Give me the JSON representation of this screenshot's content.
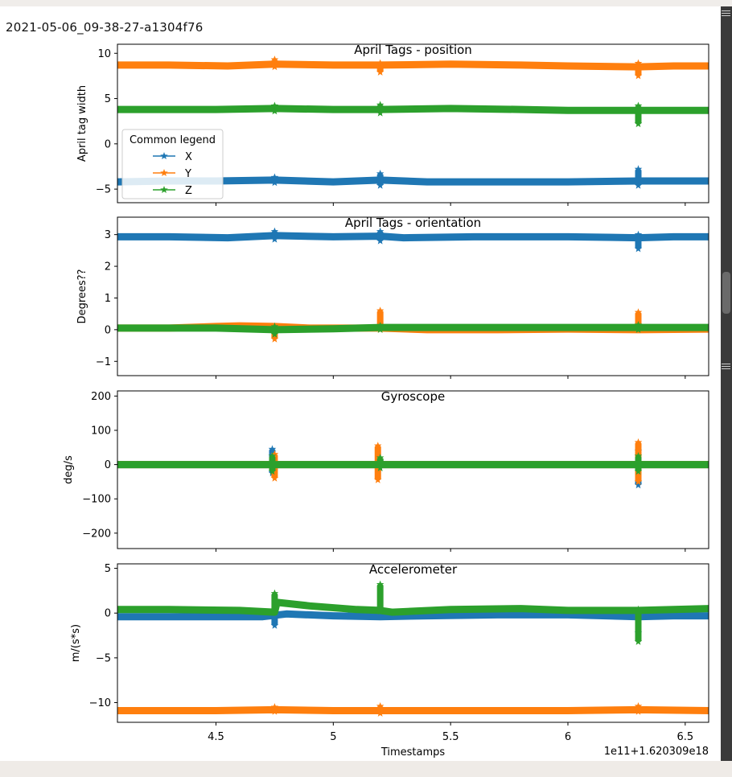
{
  "figure_title": "2021-05-06_09-38-27-a1304f76",
  "chart_data": [
    {
      "type": "scatter",
      "title": "April Tags - position",
      "ylabel": "April tag width",
      "xlabel": "",
      "xlim": [
        4.08,
        6.6
      ],
      "ylim": [
        -6.5,
        11.0
      ],
      "yticks": [
        -5,
        0,
        5,
        10
      ],
      "legend": {
        "title": "Common legend",
        "placement": "center-left",
        "entries": [
          "X",
          "Y",
          "Z"
        ]
      },
      "marker": "star",
      "series": [
        {
          "name": "X",
          "color": "#1f77b4",
          "x": [
            4.08,
            4.3,
            4.5,
            4.75,
            5.0,
            5.2,
            5.4,
            5.7,
            6.0,
            6.3,
            6.45,
            6.6
          ],
          "y": [
            -4.2,
            -4.1,
            -4.1,
            -4.0,
            -4.2,
            -4.0,
            -4.2,
            -4.2,
            -4.2,
            -4.1,
            -4.1,
            -4.1
          ],
          "spikes": [
            {
              "x": 4.75,
              "min": -4.3,
              "max": -3.7
            },
            {
              "x": 5.2,
              "min": -4.6,
              "max": -3.3
            },
            {
              "x": 6.3,
              "min": -4.6,
              "max": -2.8
            }
          ]
        },
        {
          "name": "Y",
          "color": "#ff7f0e",
          "x": [
            4.08,
            4.3,
            4.55,
            4.75,
            5.0,
            5.2,
            5.5,
            5.8,
            6.0,
            6.3,
            6.45,
            6.6
          ],
          "y": [
            8.7,
            8.7,
            8.6,
            8.8,
            8.7,
            8.7,
            8.8,
            8.7,
            8.6,
            8.5,
            8.6,
            8.6
          ],
          "spikes": [
            {
              "x": 4.75,
              "min": 8.5,
              "max": 9.3
            },
            {
              "x": 5.2,
              "min": 7.9,
              "max": 8.9
            },
            {
              "x": 6.3,
              "min": 7.5,
              "max": 8.9
            }
          ]
        },
        {
          "name": "Z",
          "color": "#2ca02c",
          "x": [
            4.08,
            4.3,
            4.5,
            4.75,
            5.0,
            5.2,
            5.5,
            5.8,
            6.0,
            6.3,
            6.45,
            6.6
          ],
          "y": [
            3.8,
            3.8,
            3.8,
            3.9,
            3.8,
            3.8,
            3.9,
            3.8,
            3.7,
            3.7,
            3.7,
            3.7
          ],
          "spikes": [
            {
              "x": 4.75,
              "min": 3.6,
              "max": 4.2
            },
            {
              "x": 5.2,
              "min": 3.4,
              "max": 4.3
            },
            {
              "x": 6.3,
              "min": 2.2,
              "max": 4.2
            }
          ]
        }
      ]
    },
    {
      "type": "scatter",
      "title": "April Tags - orientation",
      "ylabel": "Degrees??",
      "xlabel": "",
      "xlim": [
        4.08,
        6.6
      ],
      "ylim": [
        -1.45,
        3.55
      ],
      "yticks": [
        -1,
        0,
        1,
        2,
        3
      ],
      "marker": "star",
      "series": [
        {
          "name": "X",
          "color": "#1f77b4",
          "x": [
            4.08,
            4.3,
            4.55,
            4.75,
            5.0,
            5.2,
            5.3,
            5.6,
            6.0,
            6.3,
            6.45,
            6.6
          ],
          "y": [
            2.93,
            2.93,
            2.9,
            2.97,
            2.93,
            2.95,
            2.9,
            2.93,
            2.93,
            2.9,
            2.93,
            2.93
          ],
          "spikes": [
            {
              "x": 4.75,
              "min": 2.85,
              "max": 3.1
            },
            {
              "x": 5.2,
              "min": 2.8,
              "max": 3.1
            },
            {
              "x": 6.3,
              "min": 2.55,
              "max": 3.0
            }
          ]
        },
        {
          "name": "Y",
          "color": "#ff7f0e",
          "x": [
            4.08,
            4.3,
            4.5,
            4.6,
            4.75,
            4.9,
            5.2,
            5.4,
            5.7,
            6.0,
            6.3,
            6.6
          ],
          "y": [
            0.05,
            0.05,
            0.1,
            0.12,
            0.1,
            0.05,
            0.05,
            0.0,
            0.0,
            0.02,
            0.0,
            0.02
          ],
          "spikes": [
            {
              "x": 4.75,
              "min": -0.3,
              "max": 0.1
            },
            {
              "x": 5.2,
              "min": 0.0,
              "max": 0.6
            },
            {
              "x": 6.3,
              "min": 0.0,
              "max": 0.55
            }
          ]
        },
        {
          "name": "Z",
          "color": "#2ca02c",
          "x": [
            4.08,
            4.3,
            4.5,
            4.75,
            5.0,
            5.2,
            5.4,
            5.7,
            6.0,
            6.3,
            6.45,
            6.6
          ],
          "y": [
            0.05,
            0.05,
            0.05,
            0.0,
            0.03,
            0.07,
            0.07,
            0.07,
            0.07,
            0.07,
            0.07,
            0.07
          ],
          "spikes": [
            {
              "x": 4.75,
              "min": -0.15,
              "max": 0.1
            },
            {
              "x": 5.2,
              "min": 0.0,
              "max": 0.12
            },
            {
              "x": 6.3,
              "min": 0.0,
              "max": 0.15
            }
          ]
        }
      ]
    },
    {
      "type": "scatter",
      "title": "Gyroscope",
      "ylabel": "deg/s",
      "xlabel": "",
      "xlim": [
        4.08,
        6.6
      ],
      "ylim": [
        -245,
        215
      ],
      "yticks": [
        -200,
        -100,
        0,
        100,
        200
      ],
      "marker": "star",
      "series": [
        {
          "name": "X",
          "color": "#1f77b4",
          "x": [
            4.08,
            4.5,
            4.75,
            5.0,
            5.2,
            5.6,
            6.0,
            6.3,
            6.6
          ],
          "y": [
            0,
            0,
            0,
            0,
            0,
            0,
            0,
            0,
            0
          ],
          "spikes": [
            {
              "x": 4.74,
              "min": -25,
              "max": 45
            },
            {
              "x": 5.2,
              "min": -10,
              "max": 10
            },
            {
              "x": 6.3,
              "min": -60,
              "max": 40
            }
          ]
        },
        {
          "name": "Y",
          "color": "#ff7f0e",
          "x": [
            4.08,
            4.5,
            4.75,
            5.0,
            5.2,
            5.6,
            6.0,
            6.3,
            6.6
          ],
          "y": [
            0,
            0,
            0,
            0,
            0,
            0,
            0,
            0,
            0
          ],
          "spikes": [
            {
              "x": 4.75,
              "min": -40,
              "max": 30
            },
            {
              "x": 5.19,
              "min": -45,
              "max": 55
            },
            {
              "x": 6.3,
              "min": -50,
              "max": 65
            }
          ]
        },
        {
          "name": "Z",
          "color": "#2ca02c",
          "x": [
            4.08,
            4.5,
            4.75,
            5.0,
            5.2,
            5.6,
            6.0,
            6.3,
            6.6
          ],
          "y": [
            0,
            0,
            0,
            0,
            0,
            0,
            0,
            0,
            0
          ],
          "spikes": [
            {
              "x": 4.74,
              "min": -20,
              "max": 25
            },
            {
              "x": 5.2,
              "min": -10,
              "max": 20
            },
            {
              "x": 6.3,
              "min": -20,
              "max": 25
            }
          ]
        }
      ]
    },
    {
      "type": "scatter",
      "title": "Accelerometer",
      "ylabel": "m/(s*s)",
      "xlabel": "Timestamps",
      "offset_label": "1e11+1.620309e18",
      "xlim": [
        4.08,
        6.6
      ],
      "xticks": [
        4.5,
        5.0,
        5.5,
        6.0,
        6.5
      ],
      "ylim": [
        -12.2,
        5.5
      ],
      "yticks": [
        -10,
        -5,
        0,
        5
      ],
      "marker": "star",
      "series": [
        {
          "name": "X",
          "color": "#1f77b4",
          "x": [
            4.08,
            4.3,
            4.5,
            4.7,
            4.8,
            5.0,
            5.2,
            5.4,
            5.7,
            6.0,
            6.3,
            6.45,
            6.6
          ],
          "y": [
            -0.4,
            -0.4,
            -0.4,
            -0.4,
            -0.1,
            -0.3,
            -0.4,
            -0.3,
            -0.2,
            -0.2,
            -0.4,
            -0.3,
            -0.3
          ],
          "spikes": [
            {
              "x": 4.75,
              "min": -1.4,
              "max": -0.1
            },
            {
              "x": 6.3,
              "min": -2.2,
              "max": -0.1
            }
          ]
        },
        {
          "name": "Y",
          "color": "#ff7f0e",
          "x": [
            4.08,
            4.5,
            4.75,
            5.0,
            5.2,
            5.6,
            6.0,
            6.3,
            6.6
          ],
          "y": [
            -10.9,
            -10.9,
            -10.8,
            -10.9,
            -10.9,
            -10.9,
            -10.9,
            -10.8,
            -10.9
          ],
          "spikes": [
            {
              "x": 4.75,
              "min": -11.0,
              "max": -10.5
            },
            {
              "x": 5.2,
              "min": -11.2,
              "max": -10.4
            },
            {
              "x": 6.3,
              "min": -11.0,
              "max": -10.4
            }
          ]
        },
        {
          "name": "Z",
          "color": "#2ca02c",
          "x": [
            4.08,
            4.3,
            4.6,
            4.75,
            4.76,
            4.9,
            5.1,
            5.2,
            5.25,
            5.5,
            5.8,
            6.0,
            6.3,
            6.45,
            6.6
          ],
          "y": [
            0.4,
            0.4,
            0.3,
            0.1,
            1.2,
            0.8,
            0.4,
            0.3,
            0.1,
            0.4,
            0.5,
            0.3,
            0.3,
            0.4,
            0.5
          ],
          "spikes": [
            {
              "x": 4.75,
              "min": 0.1,
              "max": 2.2
            },
            {
              "x": 5.2,
              "min": 0.2,
              "max": 3.2
            },
            {
              "x": 6.3,
              "min": -3.2,
              "max": 0.4
            }
          ]
        }
      ]
    }
  ]
}
